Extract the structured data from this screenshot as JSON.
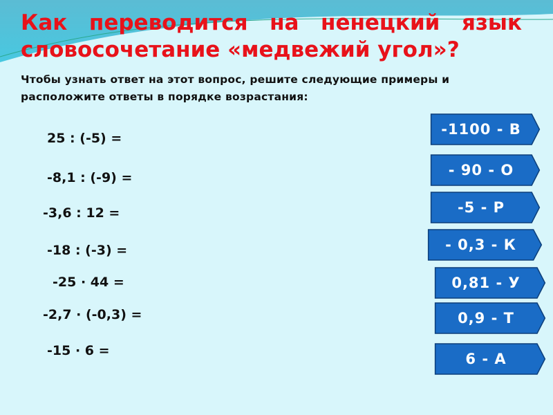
{
  "title_line1": "Как переводится на ненецкий язык",
  "title_line2": "словосочетание «медвежий угол»?",
  "subtitle": "Чтобы узнать ответ на этот вопрос, решите следующие примеры и расположите ответы в порядке возрастания:",
  "expressions": [
    "25 : (-5) =",
    "-8,1 : (-9) =",
    "-3,6 : 12 =",
    "-18 : (-3) =",
    "-25 · 44 =",
    "-2,7 · (-0,3) =",
    "-15 · 6 ="
  ],
  "answers": [
    "-1100 -  В",
    "- 90  - О",
    "-5 - Р",
    "- 0,3 - К",
    "0,81 - У",
    "0,9 - Т",
    "6 - А"
  ],
  "colors": {
    "title": "#e8121a",
    "answer_fill": "#1a6cc6",
    "answer_border": "#0d3f7a",
    "background": "#d8f6fb"
  }
}
